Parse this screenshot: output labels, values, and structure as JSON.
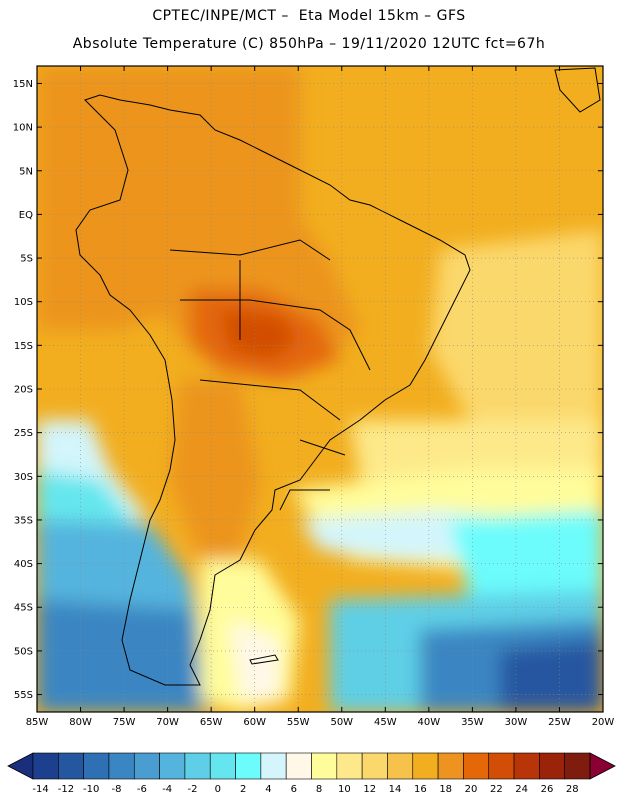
{
  "title": {
    "line1": "CPTEC/INPE/MCT –  Eta Model 15km – GFS",
    "line2": "Absolute Temperature (C) 850hPa – 19/11/2020 12UTC fct=67h"
  },
  "map": {
    "lat_labels": [
      "15N",
      "10N",
      "5N",
      "EQ",
      "5S",
      "10S",
      "15S",
      "20S",
      "25S",
      "30S",
      "35S",
      "40S",
      "45S",
      "50S",
      "55S"
    ],
    "lon_labels": [
      "85W",
      "80W",
      "75W",
      "70W",
      "65W",
      "60W",
      "55W",
      "50W",
      "45W",
      "40W",
      "35W",
      "30W",
      "25W",
      "20W"
    ],
    "lat_range": [
      17,
      -57
    ],
    "lon_range": [
      -85,
      -20
    ],
    "grid": "dotted"
  },
  "colorbar": {
    "labels": [
      "-14",
      "-12",
      "-10",
      "-8",
      "-6",
      "-4",
      "-2",
      "0",
      "2",
      "4",
      "6",
      "8",
      "10",
      "12",
      "14",
      "16",
      "18",
      "20",
      "22",
      "24",
      "26",
      "28"
    ],
    "colors": [
      "#1c3f8e",
      "#2557a0",
      "#2e70b3",
      "#3a86c2",
      "#4a9dd0",
      "#55b4dd",
      "#5ecfe6",
      "#65e6ee",
      "#6cfcfc",
      "#d3f5fb",
      "#fff8e8",
      "#fffd9b",
      "#fde98a",
      "#fbd86c",
      "#f6c24c",
      "#f2ae1f",
      "#ec941f",
      "#e46808",
      "#d24d06",
      "#b73508",
      "#9b2309",
      "#7e1c0e"
    ],
    "under_color": "#1a2f7c",
    "over_color": "#8a0034"
  }
}
